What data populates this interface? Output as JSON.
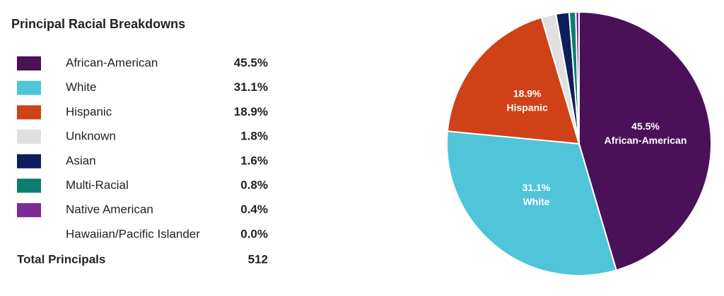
{
  "chart_data": {
    "type": "pie",
    "title": "Principal Racial Breakdowns",
    "categories": [
      "African-American",
      "White",
      "Hispanic",
      "Unknown",
      "Asian",
      "Multi-Racial",
      "Native American",
      "Hawaiian/Pacific Islander"
    ],
    "values": [
      45.5,
      31.1,
      18.9,
      1.8,
      1.6,
      0.8,
      0.4,
      0.0
    ],
    "value_labels": [
      "45.5%",
      "31.1%",
      "18.9%",
      "1.8%",
      "1.6%",
      "0.8%",
      "0.4%",
      "0.0%"
    ],
    "colors": [
      "#4a1158",
      "#50c4d9",
      "#d04118",
      "#e0e0e0",
      "#0d1e5a",
      "#0a7e70",
      "#7b2a96",
      null
    ],
    "total": {
      "label": "Total Principals",
      "value": 512
    }
  }
}
